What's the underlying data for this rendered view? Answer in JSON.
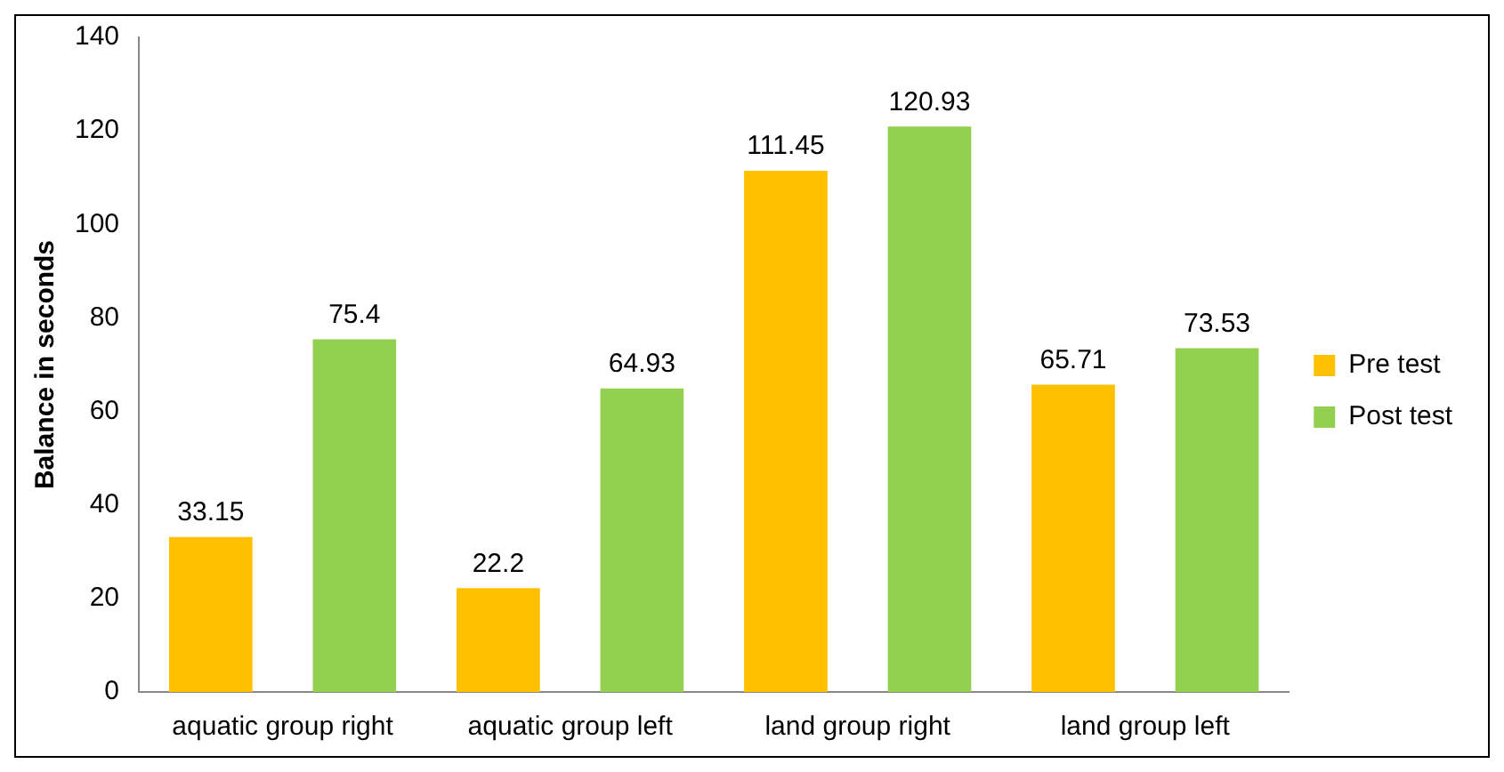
{
  "chart_data": {
    "type": "bar",
    "ylabel": "Balance in seconds",
    "categories": [
      "aquatic group right",
      "aquatic group left",
      "land group right",
      "land group left"
    ],
    "series": [
      {
        "name": "Pre test",
        "color": "#ffc000",
        "values": [
          33.15,
          22.2,
          111.45,
          65.71
        ]
      },
      {
        "name": "Post test",
        "color": "#92d050",
        "values": [
          75.4,
          64.93,
          120.93,
          73.53
        ]
      }
    ],
    "ylim": [
      0,
      140
    ],
    "yticks": [
      0,
      20,
      40,
      60,
      80,
      100,
      120,
      140
    ],
    "grid": false,
    "legend": "right",
    "data_labels": true
  }
}
